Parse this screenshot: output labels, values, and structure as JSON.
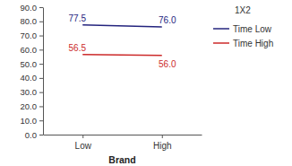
{
  "chart_data": {
    "type": "line",
    "x_label": "Brand",
    "legend_title": "1X2",
    "categories": [
      "Low",
      "High"
    ],
    "series": [
      {
        "name": "Time Low",
        "color": "#24247e",
        "values": [
          77.5,
          76.0
        ],
        "value_labels": [
          "77.5",
          "76.0"
        ]
      },
      {
        "name": "Time High",
        "color": "#cc2a2a",
        "values": [
          56.5,
          56.0
        ],
        "value_labels": [
          "56.5",
          "56.0"
        ]
      }
    ],
    "ylim": [
      0,
      90
    ],
    "yticks": [
      {
        "value": 0,
        "label": "0.0"
      },
      {
        "value": 10,
        "label": "10.0"
      },
      {
        "value": 20,
        "label": "20.0"
      },
      {
        "value": 30,
        "label": "30.0"
      },
      {
        "value": 40,
        "label": "40.0"
      },
      {
        "value": 50,
        "label": "50.0"
      },
      {
        "value": 60,
        "label": "60.0"
      },
      {
        "value": 70,
        "label": "70.0"
      },
      {
        "value": 80,
        "label": "80.0"
      },
      {
        "value": 90,
        "label": "90.0"
      }
    ],
    "grid": false,
    "legend": "top-right",
    "data_labels": true
  }
}
